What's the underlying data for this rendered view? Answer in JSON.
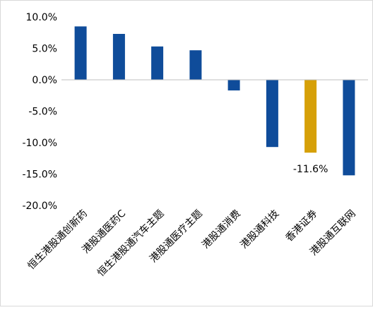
{
  "chart_data": {
    "type": "bar",
    "title": "",
    "xlabel": "",
    "ylabel": "",
    "categories": [
      "恒生港股通创新药",
      "港股通医药C",
      "恒生港股通汽车主题",
      "港股通医疗主题",
      "港股通消费",
      "港股通科技",
      "香港证券",
      "港股通互联网"
    ],
    "values": [
      8.5,
      7.3,
      5.3,
      4.7,
      -1.7,
      -10.7,
      -11.6,
      -15.2
    ],
    "highlight_index": 6,
    "data_labels": [
      {
        "index": 6,
        "text": "-11.6%"
      }
    ],
    "ylim": [
      -20,
      10
    ],
    "yticks": [
      10,
      5,
      0,
      -5,
      -10,
      -15,
      -20
    ],
    "ytick_labels": [
      "10.0%",
      "5.0%",
      "0.0%",
      "-5.0%",
      "-10.0%",
      "-15.0%",
      "-20.0%"
    ],
    "grid": false,
    "legend": "none",
    "colors": {
      "bar": "#0f4c9a",
      "highlight": "#d6a008",
      "axis": "#bfbfbf",
      "text": "#000000"
    }
  }
}
